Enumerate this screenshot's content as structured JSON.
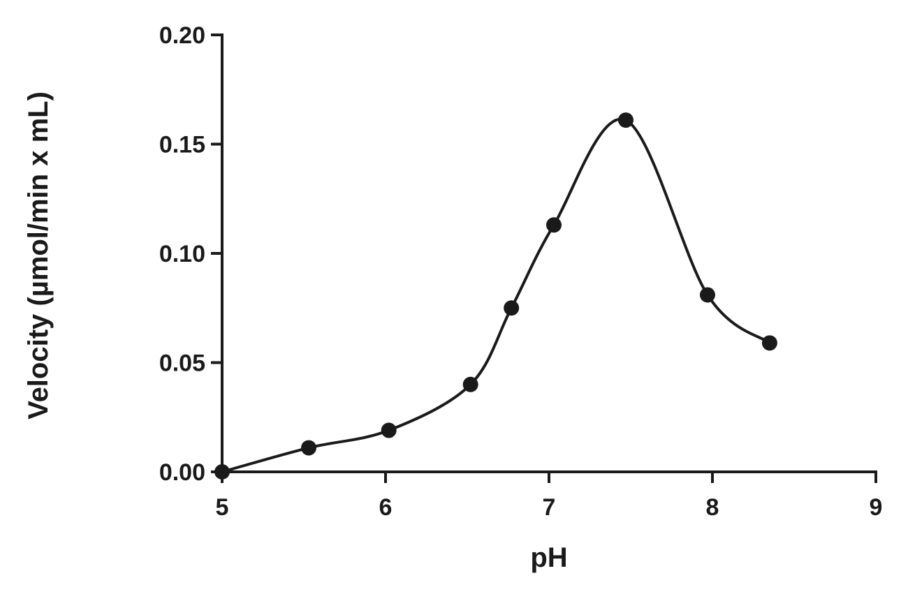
{
  "chart_data": {
    "type": "line",
    "title": "",
    "xlabel": "pH",
    "ylabel": "Velocity (µmol/min x mL)",
    "xlim": [
      5,
      9
    ],
    "ylim": [
      0,
      0.2
    ],
    "xticks": [
      5,
      6,
      7,
      8,
      9
    ],
    "xtick_labels": [
      "5",
      "6",
      "7",
      "8",
      "9"
    ],
    "yticks": [
      0,
      0.05,
      0.1,
      0.15,
      0.2
    ],
    "ytick_labels": [
      "0.00",
      "0.05",
      "0.10",
      "0.15",
      "0.20"
    ],
    "grid": false,
    "legend": "none",
    "series": [
      {
        "x": [
          5.0,
          5.53,
          6.02,
          6.52,
          6.77,
          7.03,
          7.47,
          7.97,
          8.35
        ],
        "y": [
          0.0,
          0.011,
          0.019,
          0.04,
          0.075,
          0.113,
          0.161,
          0.081,
          0.059
        ],
        "marker": "circle",
        "smooth": true,
        "color": "#1a1a1a"
      }
    ]
  }
}
